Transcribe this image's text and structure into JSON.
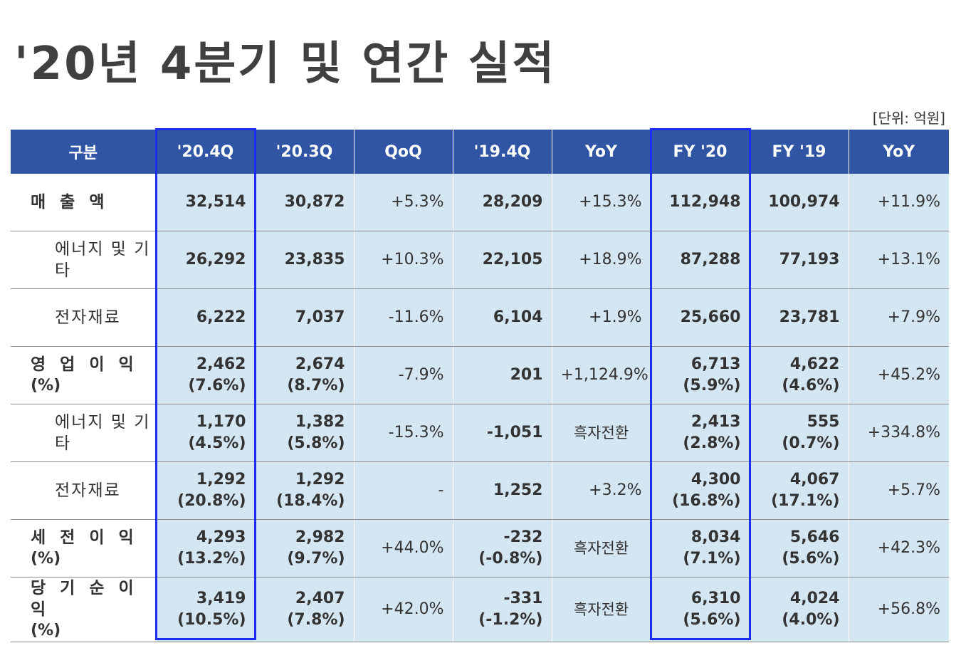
{
  "title": "'20년 4분기 및 연간 실적",
  "unit": "[단위: 억원]",
  "columns": [
    "구분",
    "'20.4Q",
    "'20.3Q",
    "QoQ",
    "'19.4Q",
    "YoY",
    "FY '20",
    "FY '19",
    "YoY"
  ],
  "rows": [
    {
      "label": "매 출 액",
      "sub": false,
      "cells": [
        {
          "type": "num",
          "lines": [
            "32,514"
          ]
        },
        {
          "type": "num",
          "lines": [
            "30,872"
          ]
        },
        {
          "type": "chg",
          "lines": [
            "+5.3%"
          ]
        },
        {
          "type": "num",
          "lines": [
            "28,209"
          ]
        },
        {
          "type": "chg",
          "lines": [
            "+15.3%"
          ]
        },
        {
          "type": "num",
          "lines": [
            "112,948"
          ]
        },
        {
          "type": "num",
          "lines": [
            "100,974"
          ]
        },
        {
          "type": "chg",
          "lines": [
            "+11.9%"
          ]
        }
      ]
    },
    {
      "label": "에너지 및 기타",
      "sub": true,
      "cells": [
        {
          "type": "num",
          "lines": [
            "26,292"
          ]
        },
        {
          "type": "num",
          "lines": [
            "23,835"
          ]
        },
        {
          "type": "chg",
          "lines": [
            "+10.3%"
          ]
        },
        {
          "type": "num",
          "lines": [
            "22,105"
          ]
        },
        {
          "type": "chg",
          "lines": [
            "+18.9%"
          ]
        },
        {
          "type": "num",
          "lines": [
            "87,288"
          ]
        },
        {
          "type": "num",
          "lines": [
            "77,193"
          ]
        },
        {
          "type": "chg",
          "lines": [
            "+13.1%"
          ]
        }
      ]
    },
    {
      "label": "전자재료",
      "sub": true,
      "cells": [
        {
          "type": "num",
          "lines": [
            "6,222"
          ]
        },
        {
          "type": "num",
          "lines": [
            "7,037"
          ]
        },
        {
          "type": "chg",
          "lines": [
            "-11.6%"
          ]
        },
        {
          "type": "num",
          "lines": [
            "6,104"
          ]
        },
        {
          "type": "chg",
          "lines": [
            "+1.9%"
          ]
        },
        {
          "type": "num",
          "lines": [
            "25,660"
          ]
        },
        {
          "type": "num",
          "lines": [
            "23,781"
          ]
        },
        {
          "type": "chg",
          "lines": [
            "+7.9%"
          ]
        }
      ]
    },
    {
      "label": "영 업 이 익",
      "pct": "(%)",
      "sub": false,
      "cells": [
        {
          "type": "num",
          "lines": [
            "2,462",
            "(7.6%)"
          ]
        },
        {
          "type": "num",
          "lines": [
            "2,674",
            "(8.7%)"
          ]
        },
        {
          "type": "chg",
          "lines": [
            "-7.9%"
          ]
        },
        {
          "type": "num",
          "lines": [
            "201"
          ]
        },
        {
          "type": "chg",
          "lines": [
            "+1,124.9%"
          ]
        },
        {
          "type": "num",
          "lines": [
            "6,713",
            "(5.9%)"
          ]
        },
        {
          "type": "num",
          "lines": [
            "4,622",
            "(4.6%)"
          ]
        },
        {
          "type": "chg",
          "lines": [
            "+45.2%"
          ]
        }
      ]
    },
    {
      "label": "에너지 및 기타",
      "sub": true,
      "cells": [
        {
          "type": "num",
          "lines": [
            "1,170",
            "(4.5%)"
          ]
        },
        {
          "type": "num",
          "lines": [
            "1,382",
            "(5.8%)"
          ]
        },
        {
          "type": "chg",
          "lines": [
            "-15.3%"
          ]
        },
        {
          "type": "num",
          "lines": [
            "-1,051"
          ]
        },
        {
          "type": "txt",
          "lines": [
            "흑자전환"
          ]
        },
        {
          "type": "num",
          "lines": [
            "2,413",
            "(2.8%)"
          ]
        },
        {
          "type": "num",
          "lines": [
            "555",
            "(0.7%)"
          ]
        },
        {
          "type": "chg",
          "lines": [
            "+334.8%"
          ]
        }
      ]
    },
    {
      "label": "전자재료",
      "sub": true,
      "cells": [
        {
          "type": "num",
          "lines": [
            "1,292",
            "(20.8%)"
          ]
        },
        {
          "type": "num",
          "lines": [
            "1,292",
            "(18.4%)"
          ]
        },
        {
          "type": "chg",
          "lines": [
            "-"
          ]
        },
        {
          "type": "num",
          "lines": [
            "1,252"
          ]
        },
        {
          "type": "chg",
          "lines": [
            "+3.2%"
          ]
        },
        {
          "type": "num",
          "lines": [
            "4,300",
            "(16.8%)"
          ]
        },
        {
          "type": "num",
          "lines": [
            "4,067",
            "(17.1%)"
          ]
        },
        {
          "type": "chg",
          "lines": [
            "+5.7%"
          ]
        }
      ]
    },
    {
      "label": "세 전 이 익",
      "pct": "(%)",
      "sub": false,
      "cells": [
        {
          "type": "num",
          "lines": [
            "4,293",
            "(13.2%)"
          ]
        },
        {
          "type": "num",
          "lines": [
            "2,982",
            "(9.7%)"
          ]
        },
        {
          "type": "chg",
          "lines": [
            "+44.0%"
          ]
        },
        {
          "type": "num",
          "lines": [
            "-232",
            "(-0.8%)"
          ]
        },
        {
          "type": "txt",
          "lines": [
            "흑자전환"
          ]
        },
        {
          "type": "num",
          "lines": [
            "8,034",
            "(7.1%)"
          ]
        },
        {
          "type": "num",
          "lines": [
            "5,646",
            "(5.6%)"
          ]
        },
        {
          "type": "chg",
          "lines": [
            "+42.3%"
          ]
        }
      ]
    },
    {
      "label": "당 기 순 이 익",
      "pct": "(%)",
      "sub": false,
      "cells": [
        {
          "type": "num",
          "lines": [
            "3,419",
            "(10.5%)"
          ]
        },
        {
          "type": "num",
          "lines": [
            "2,407",
            "(7.8%)"
          ]
        },
        {
          "type": "chg",
          "lines": [
            "+42.0%"
          ]
        },
        {
          "type": "num",
          "lines": [
            "-331",
            "(-1.2%)"
          ]
        },
        {
          "type": "txt",
          "lines": [
            "흑자전환"
          ]
        },
        {
          "type": "num",
          "lines": [
            "6,310",
            "(5.6%)"
          ]
        },
        {
          "type": "num",
          "lines": [
            "4,024",
            "(4.0%)"
          ]
        },
        {
          "type": "chg",
          "lines": [
            "+56.8%"
          ]
        }
      ]
    }
  ]
}
